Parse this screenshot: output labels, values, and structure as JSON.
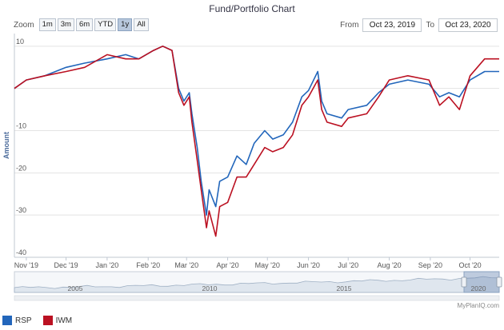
{
  "header": {
    "title": "Fund/Portfolio Chart"
  },
  "zoom": {
    "label": "Zoom",
    "buttons": [
      "1m",
      "3m",
      "6m",
      "YTD",
      "1y",
      "All"
    ],
    "active": "1y"
  },
  "range": {
    "from_label": "From",
    "from_value": "Oct 23, 2019",
    "to_label": "To",
    "to_value": "Oct 23, 2020"
  },
  "navigator": {
    "years": [
      "2005",
      "2010",
      "2015",
      "2020"
    ],
    "watermark": "MyPlanIQ.com"
  },
  "legend": [
    {
      "name": "RSP",
      "color": "#2266bb"
    },
    {
      "name": "IWM",
      "color": "#bb1122"
    }
  ],
  "chart_data": {
    "type": "line",
    "ylabel": "Amount",
    "ylim": [
      -40,
      13
    ],
    "yticks": [
      10,
      0,
      -10,
      -20,
      -30,
      -40
    ],
    "ytick_labels": [
      "10",
      "",
      "-10",
      "-20",
      "-30",
      "-40"
    ],
    "xticks": [
      "2019-11-01",
      "2019-12-01",
      "2020-01-01",
      "2020-02-01",
      "2020-03-01",
      "2020-04-01",
      "2020-05-01",
      "2020-06-01",
      "2020-07-01",
      "2020-08-01",
      "2020-09-01",
      "2020-10-01"
    ],
    "xtick_labels": [
      "Nov '19",
      "Dec '19",
      "Jan '20",
      "Feb '20",
      "Mar '20",
      "Apr '20",
      "May '20",
      "Jun '20",
      "Jul '20",
      "Aug '20",
      "Sep '20",
      "Oct '20"
    ],
    "xrange": [
      "2019-10-23",
      "2020-10-23"
    ],
    "x": [
      "2019-10-23",
      "2019-11-01",
      "2019-11-15",
      "2019-12-01",
      "2019-12-15",
      "2020-01-01",
      "2020-01-15",
      "2020-01-25",
      "2020-02-05",
      "2020-02-12",
      "2020-02-19",
      "2020-02-24",
      "2020-02-28",
      "2020-03-03",
      "2020-03-05",
      "2020-03-09",
      "2020-03-12",
      "2020-03-16",
      "2020-03-18",
      "2020-03-23",
      "2020-03-26",
      "2020-04-01",
      "2020-04-08",
      "2020-04-15",
      "2020-04-21",
      "2020-04-29",
      "2020-05-05",
      "2020-05-13",
      "2020-05-20",
      "2020-05-27",
      "2020-06-01",
      "2020-06-08",
      "2020-06-11",
      "2020-06-15",
      "2020-06-26",
      "2020-07-01",
      "2020-07-15",
      "2020-07-24",
      "2020-08-01",
      "2020-08-15",
      "2020-08-31",
      "2020-09-08",
      "2020-09-15",
      "2020-09-23",
      "2020-10-01",
      "2020-10-12",
      "2020-10-23"
    ],
    "series": [
      {
        "name": "RSP",
        "color": "#2266bb",
        "values": [
          0,
          2,
          3,
          5,
          6,
          7,
          8,
          7,
          9,
          10,
          9,
          0,
          -3,
          -1,
          -6,
          -14,
          -22,
          -30,
          -24,
          -28,
          -22,
          -21,
          -16,
          -18,
          -13,
          -10,
          -12,
          -11,
          -8,
          -2,
          -0.5,
          4,
          -3,
          -6,
          -7,
          -5,
          -4,
          -1,
          1,
          2,
          1,
          -2,
          -1,
          -2,
          2,
          4,
          4
        ]
      },
      {
        "name": "IWM",
        "color": "#bb1122",
        "values": [
          0,
          2,
          3,
          4,
          5,
          8,
          7,
          7,
          9,
          10,
          9,
          -1,
          -4,
          -2,
          -8,
          -17,
          -24,
          -33,
          -29,
          -35,
          -28,
          -27,
          -21,
          -21,
          -18,
          -14,
          -15,
          -14,
          -11,
          -4,
          -2,
          2,
          -5,
          -8,
          -9,
          -7,
          -6,
          -2,
          2,
          3,
          2,
          -4,
          -2,
          -5,
          3,
          7,
          7
        ]
      }
    ]
  }
}
